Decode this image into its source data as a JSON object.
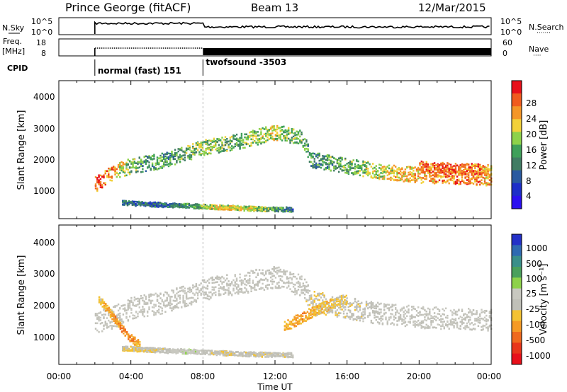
{
  "header": {
    "title": "Prince George (fitACF)",
    "beam": "Beam 13",
    "date": "12/Mar/2015"
  },
  "nsky_panel": {
    "left_label": "N.Sky",
    "left_ticks": [
      "10^5",
      "10^0"
    ],
    "right_ticks": [
      "10^5",
      "10^0"
    ],
    "right_label": "N.Search",
    "right_legend_symbol": "·······"
  },
  "freq_panel": {
    "left_label_line1": "Freq.",
    "left_label_line2": "[MHz]",
    "left_ticks": [
      "18",
      "8"
    ],
    "right_ticks": [
      "60",
      "0"
    ],
    "right_label": "Nave",
    "right_legend_symbol": "····"
  },
  "cpid": {
    "label": "CPID",
    "modes": [
      {
        "name": "normal (fast) 151",
        "start_hour": 2.0
      },
      {
        "name": "twofsound -3503",
        "start_hour": 8.0
      }
    ]
  },
  "power_colorbar": {
    "label": "Power [dB]",
    "ticks": [
      "28",
      "24",
      "20",
      "16",
      "12",
      "8",
      "4"
    ],
    "colors": [
      "#e8101a",
      "#f05b1e",
      "#f49628",
      "#f2d13a",
      "#8ed24a",
      "#3fa05a",
      "#417c64",
      "#2a5aa0",
      "#1d2ec8",
      "#2b10f0"
    ]
  },
  "velocity_colorbar": {
    "label": "Velocity [m s⁻¹]",
    "ticks": [
      "1000",
      "500",
      "100",
      "25",
      "-25",
      "-100",
      "-500",
      "-1000"
    ],
    "colors": [
      "#2431c8",
      "#2f6ab2",
      "#3a8f8a",
      "#4aa05c",
      "#8ed24a",
      "#c8c8c0",
      "#c0c0b8",
      "#f3c233",
      "#f59a25",
      "#ef6a1e",
      "#e8361a",
      "#e8101a"
    ]
  },
  "x_axis": {
    "label": "Time UT",
    "ticks": [
      "00:00",
      "04:00",
      "08:00",
      "12:00",
      "16:00",
      "20:00",
      "00:00"
    ]
  },
  "chart_data": [
    {
      "type": "heatmap",
      "title": "Power",
      "xlabel": "Time UT",
      "ylabel": "Slant Range [km]",
      "ylim": [
        0,
        4500
      ],
      "yticks": [
        "4000",
        "3000",
        "2000",
        "1000"
      ],
      "x_range_hours": [
        0,
        24
      ],
      "colorbar_range_db": [
        0,
        30
      ],
      "bands": [
        {
          "t": [
            2.0,
            3.0,
            4.0,
            6.0,
            8.0,
            10.0,
            12.0,
            13.5,
            14.0,
            16.0,
            18.0,
            20.0,
            22.0,
            24.0
          ],
          "r": [
            1100,
            1500,
            1700,
            1900,
            2300,
            2500,
            2800,
            2600,
            1900,
            1700,
            1500,
            1400,
            1350,
            1300
          ],
          "width": 500,
          "power": [
            26,
            22,
            14,
            12,
            16,
            14,
            18,
            14,
            12,
            14,
            18,
            22,
            24,
            22
          ]
        },
        {
          "t": [
            3.5,
            5.0,
            7.0,
            9.0,
            11.0,
            13.0
          ],
          "r": [
            500,
            450,
            400,
            350,
            300,
            280
          ],
          "width": 150,
          "power": [
            10,
            8,
            12,
            20,
            16,
            10
          ]
        },
        {
          "t": [
            20.0,
            21.0,
            22.0,
            23.0,
            24.0
          ],
          "r": [
            1700,
            1650,
            1600,
            1600,
            1550
          ],
          "width": 350,
          "power": [
            24,
            26,
            25,
            24,
            22
          ]
        }
      ]
    },
    {
      "type": "heatmap",
      "title": "Velocity",
      "xlabel": "Time UT",
      "ylabel": "Slant Range [km]",
      "ylim": [
        0,
        4500
      ],
      "yticks": [
        "4000",
        "3000",
        "2000",
        "1000"
      ],
      "x_range_hours": [
        0,
        24
      ],
      "colorbar_range_ms": [
        -1000,
        1000
      ],
      "bands": [
        {
          "t": [
            2.0,
            3.0,
            4.0,
            6.0,
            8.0,
            10.0,
            12.0,
            13.5,
            14.0,
            16.0,
            18.0,
            20.0,
            22.0,
            24.0
          ],
          "r": [
            1300,
            1500,
            1800,
            2000,
            2400,
            2600,
            2800,
            2500,
            2000,
            1800,
            1600,
            1500,
            1450,
            1400
          ],
          "width": 700,
          "velocity": [
            0,
            0,
            0,
            0,
            0,
            0,
            0,
            0,
            -120,
            -80,
            0,
            0,
            0,
            0
          ]
        },
        {
          "t": [
            2.2,
            3.0,
            3.8,
            4.5
          ],
          "r": [
            2100,
            1500,
            900,
            600
          ],
          "width": 250,
          "velocity": [
            -200,
            -400,
            -500,
            -300
          ]
        },
        {
          "t": [
            3.5,
            5.0,
            7.0,
            9.0,
            11.0,
            13.0
          ],
          "r": [
            500,
            450,
            400,
            350,
            300,
            280
          ],
          "width": 150,
          "velocity": [
            -150,
            -120,
            80,
            -100,
            -60,
            -40
          ]
        },
        {
          "t": [
            12.5,
            13.5,
            14.5,
            16.0
          ],
          "r": [
            1200,
            1500,
            1800,
            2100
          ],
          "width": 350,
          "velocity": [
            -300,
            -400,
            -250,
            -150
          ]
        }
      ]
    }
  ]
}
